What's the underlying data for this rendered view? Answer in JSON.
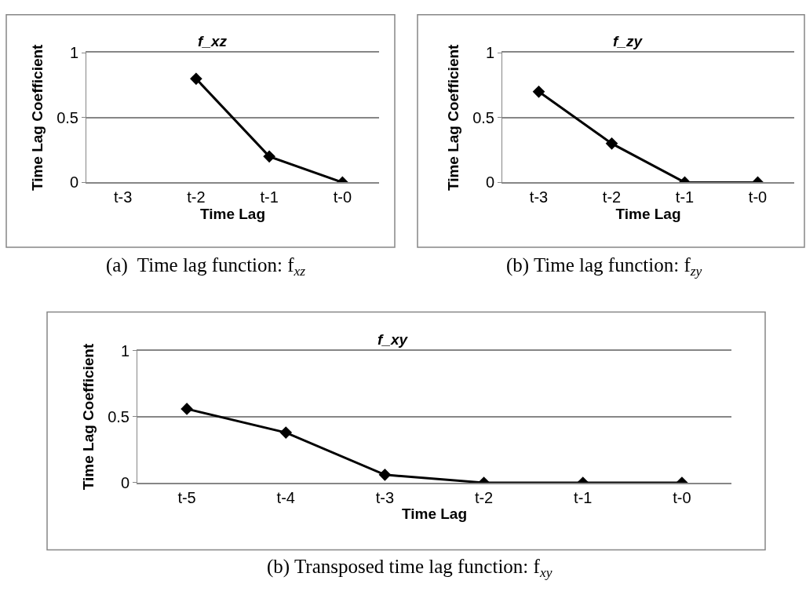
{
  "chart_data": [
    {
      "type": "line",
      "title": "f_xz",
      "xlabel": "Time Lag",
      "ylabel": "Time Lag Coefficient",
      "categories": [
        "t-3",
        "t-2",
        "t-1",
        "t-0"
      ],
      "ylim": [
        0,
        1
      ],
      "yticks": [
        0,
        0.5,
        1
      ],
      "grid": "y",
      "marker": "diamond",
      "series": [
        {
          "color": "#000000",
          "values": [
            null,
            0.8,
            0.2,
            0
          ]
        }
      ],
      "annotations": [
        "(a)  Time lag function: f$_{xz}$"
      ]
    },
    {
      "type": "line",
      "title": "f_zy",
      "xlabel": "Time Lag",
      "ylabel": "Time Lag Coefficient",
      "categories": [
        "t-3",
        "t-2",
        "t-1",
        "t-0"
      ],
      "ylim": [
        0,
        1
      ],
      "yticks": [
        0,
        0.5,
        1
      ],
      "grid": "y",
      "marker": "diamond",
      "series": [
        {
          "color": "#000000",
          "values": [
            0.7,
            0.3,
            0,
            0
          ]
        }
      ],
      "annotations": [
        "(b) Time lag function: f$_{zy}$"
      ]
    },
    {
      "type": "line",
      "title": "f_xy",
      "xlabel": "Time Lag",
      "ylabel": "Time Lag Coefficient",
      "categories": [
        "t-5",
        "t-4",
        "t-3",
        "t-2",
        "t-1",
        "t-0"
      ],
      "ylim": [
        0,
        1
      ],
      "yticks": [
        0,
        0.5,
        1
      ],
      "grid": "y",
      "marker": "diamond",
      "series": [
        {
          "color": "#000000",
          "values": [
            0.56,
            0.38,
            0.06,
            0,
            0,
            0
          ]
        }
      ],
      "annotations": [
        "(b) Transposed time lag function: f$_{xy}$"
      ]
    }
  ]
}
